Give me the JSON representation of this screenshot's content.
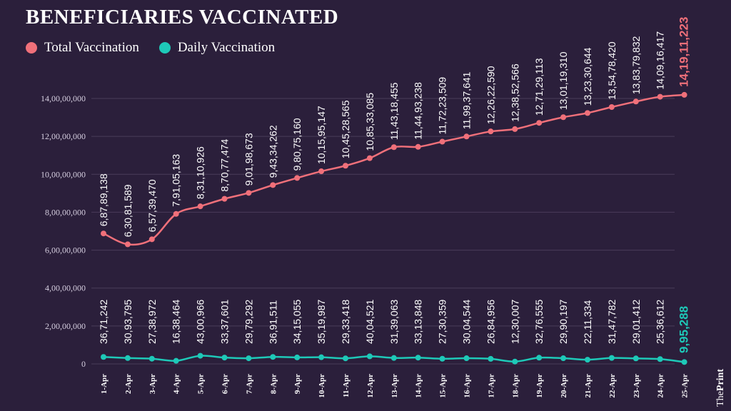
{
  "title": "BENEFICIARIES VACCINATED",
  "brand": {
    "prefix": "The",
    "name": "Print"
  },
  "chart_data": {
    "type": "line",
    "title": "BENEFICIARIES VACCINATED",
    "categories": [
      "1-Apr",
      "2-Apr",
      "3-Apr",
      "4-Apr",
      "5-Apr",
      "6-Apr",
      "7-Apr",
      "8-Apr",
      "9-Apr",
      "10-Apr",
      "11-Apr",
      "12-Apr",
      "13-Apr",
      "14-Apr",
      "15-Apr",
      "16-Apr",
      "17-Apr",
      "18-Apr",
      "19-Apr",
      "20-Apr",
      "21-Apr",
      "22-Apr",
      "23-Apr",
      "24-Apr",
      "25-Apr"
    ],
    "ylim": [
      0,
      140000000
    ],
    "yticks": [
      0,
      20000000,
      40000000,
      60000000,
      80000000,
      100000000,
      120000000,
      140000000
    ],
    "ytick_labels": [
      "0",
      "2,00,00,000",
      "4,00,00,000",
      "6,00,00,000",
      "8,00,00,000",
      "10,00,00,000",
      "12,00,00,000",
      "14,00,00,000"
    ],
    "series": [
      {
        "name": "Total Vaccination",
        "color": "#f0707a",
        "values": [
          68789138,
          63081589,
          65739470,
          79105163,
          83110926,
          87077474,
          90198673,
          94334262,
          98075160,
          101595147,
          104528565,
          108533085,
          114318455,
          114493238,
          117223509,
          119937641,
          122622590,
          123852566,
          127129113,
          130119310,
          132330644,
          135478420,
          138379832,
          140916417,
          141911223
        ],
        "labels": [
          "6,87,89,138",
          "6,30,81,589",
          "6,57,39,470",
          "7,91,05,163",
          "8,31,10,926",
          "8,70,77,474",
          "9,01,98,673",
          "9,43,34,262",
          "9,80,75,160",
          "10,15,95,147",
          "10,45,28,565",
          "10,85,33,085",
          "11,43,18,455",
          "11,44,93,238",
          "11,72,23,509",
          "11,99,37,641",
          "12,26,22,590",
          "12,38,52,566",
          "12,71,29,113",
          "13,01,19,310",
          "13,23,30,644",
          "13,54,78,420",
          "13,83,79,832",
          "14,09,16,417",
          "14,19,11,223"
        ]
      },
      {
        "name": "Daily Vaccination",
        "color": "#1ec9b8",
        "values": [
          3671242,
          3093795,
          2738972,
          1638464,
          4300966,
          3337601,
          2979292,
          3691511,
          3415055,
          3519987,
          2933418,
          4004521,
          3139063,
          3313848,
          2730359,
          3004544,
          2684956,
          1230007,
          3276555,
          2990197,
          2211334,
          3147782,
          2901412,
          2536612,
          995288
        ],
        "labels": [
          "36,71,242",
          "30,93,795",
          "27,38,972",
          "16,38,464",
          "43,00,966",
          "33,37,601",
          "29,79,292",
          "36,91,511",
          "34,15,055",
          "35,19,987",
          "29,33,418",
          "40,04,521",
          "31,39,063",
          "33,13,848",
          "27,30,359",
          "30,04,544",
          "26,84,956",
          "12,30,007",
          "32,76,555",
          "29,90,197",
          "22,11,334",
          "31,47,782",
          "29,01,412",
          "25,36,612",
          "9,95,288"
        ]
      }
    ]
  }
}
